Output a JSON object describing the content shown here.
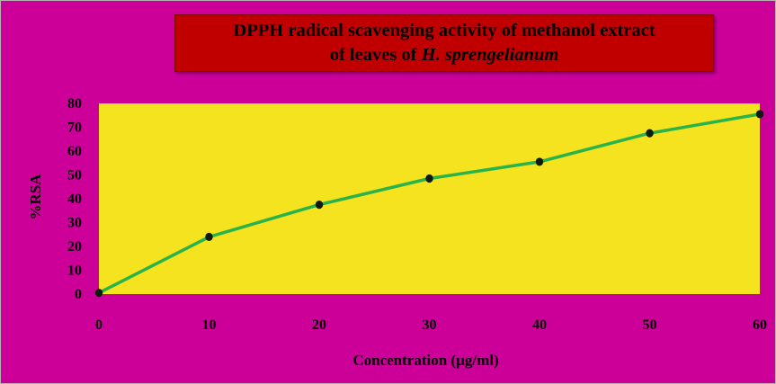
{
  "title_line1": "DPPH radical scavenging activity of methanol extract",
  "title_line2_prefix": "of leaves of ",
  "title_line2_species": "H. sprengelianum",
  "chart_data": {
    "type": "line",
    "title": "DPPH radical scavenging activity of methanol extract of leaves of H. sprengelianum",
    "xlabel": "Concentration (µg/ml)",
    "ylabel": "%RSA",
    "x": [
      0,
      10,
      20,
      30,
      40,
      50,
      60
    ],
    "series": [
      {
        "values": [
          0.5,
          24,
          37.5,
          48.5,
          55.5,
          67.5,
          75.5
        ]
      }
    ],
    "xlim": [
      0,
      60
    ],
    "ylim": [
      0,
      80
    ],
    "x_ticks": [
      "0",
      "10",
      "20",
      "30",
      "40",
      "50",
      "60"
    ],
    "y_ticks": [
      "0",
      "10",
      "20",
      "30",
      "40",
      "50",
      "60",
      "70",
      "80"
    ],
    "grid": false,
    "legend": "none",
    "colors": {
      "background": "#cc0099",
      "plot_area": "#f5e320",
      "line": "#2ab34a",
      "marker": "#0f1a10",
      "title_box": "#c00000"
    }
  }
}
